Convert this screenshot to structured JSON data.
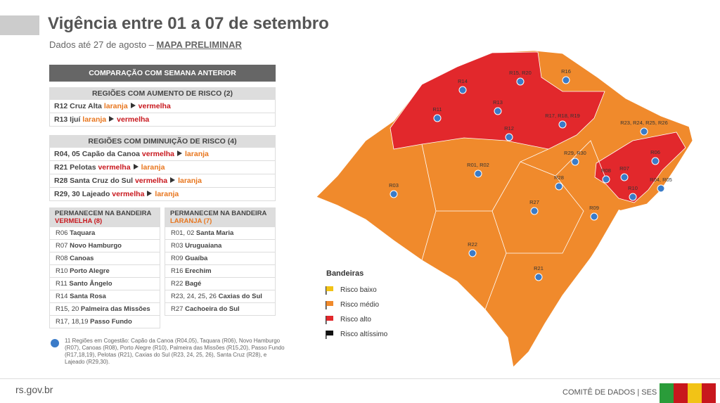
{
  "header": {
    "title": "Vigência entre 01 a 07 de setembro",
    "subtitle": "Dados até 27 de agosto –",
    "subtitle_link": "MAPA PRELIMINAR"
  },
  "comparison": {
    "title": "COMPARAÇÃO COM SEMANA ANTERIOR"
  },
  "increase": {
    "title": "REGIÕES COM AUMENTO DE RISCO (2)",
    "rows": [
      {
        "region": "R12 Cruz Alta",
        "from": "laranja",
        "to": "vermelha"
      },
      {
        "region": "R13 Ijuí",
        "from": "laranja",
        "to": "vermelha"
      }
    ]
  },
  "decrease": {
    "title": "REGIÕES COM DIMINUIÇÃO DE RISCO (4)",
    "rows": [
      {
        "region": "R04, 05 Capão da Canoa",
        "from": "vermelha",
        "to": "laranja"
      },
      {
        "region": "R21 Pelotas",
        "from": "vermelha",
        "to": "laranja"
      },
      {
        "region": "R28 Santa Cruz do Sul",
        "from": "vermelha",
        "to": "laranja"
      },
      {
        "region": "R29, 30 Lajeado",
        "from": "vermelha",
        "to": "laranja"
      }
    ]
  },
  "red_list": {
    "title": "PERMANECEM NA BANDEIRA",
    "flag": "VERMELHA (8)",
    "items": [
      {
        "code": "R06",
        "name": "Taquara"
      },
      {
        "code": "R07",
        "name": "Novo Hamburgo"
      },
      {
        "code": "R08",
        "name": "Canoas"
      },
      {
        "code": "R10",
        "name": "Porto Alegre"
      },
      {
        "code": "R11",
        "name": "Santo Ângelo"
      },
      {
        "code": "R14",
        "name": "Santa Rosa"
      },
      {
        "code": "R15, 20",
        "name": "Palmeira das Missões"
      },
      {
        "code": "R17, 18,19",
        "name": "Passo Fundo"
      }
    ]
  },
  "orange_list": {
    "title": "PERMANECEM NA BANDEIRA",
    "flag": "LARANJA (7)",
    "items": [
      {
        "code": "R01, 02",
        "name": "Santa Maria"
      },
      {
        "code": "R03",
        "name": "Uruguaiana"
      },
      {
        "code": "R09",
        "name": "Guaíba"
      },
      {
        "code": "R16",
        "name": "Erechim"
      },
      {
        "code": "R22",
        "name": "Bagé"
      },
      {
        "code": "R23, 24, 25, 26",
        "name": "Caxias do Sul"
      },
      {
        "code": "R27",
        "name": "Cachoeira do Sul"
      }
    ]
  },
  "note": {
    "text": "11 Regiões em Cogestão: Capão da Canoa (R04,05), Taquara (R06), Novo Hamburgo (R07), Canoas (R08), Porto Alegre (R10), Palmeira das Missões (R15,20), Passo Fundo (R17,18,19), Pelotas (R21), Caxias do Sul (R23, 24, 25, 26), Santa Cruz (R28), e Lajeado (R29,30)."
  },
  "legend": {
    "title": "Bandeiras",
    "items": [
      "Risco baixo",
      "Risco médio",
      "Risco alto",
      "Risco altíssimo"
    ]
  },
  "map": {
    "labels": [
      "R15, R20",
      "R16",
      "R14",
      "R13",
      "R11",
      "R17, R18, R19",
      "R12",
      "R23, R24, R25, R26",
      "R29, R30",
      "R06",
      "R01, R02",
      "R03",
      "R08",
      "R07",
      "R28",
      "R04, R05",
      "R10",
      "R27",
      "R09",
      "R22",
      "R21"
    ]
  },
  "footer": {
    "site": "rs.gov.br",
    "credit": "COMITÊ DE DADOS | SES"
  }
}
